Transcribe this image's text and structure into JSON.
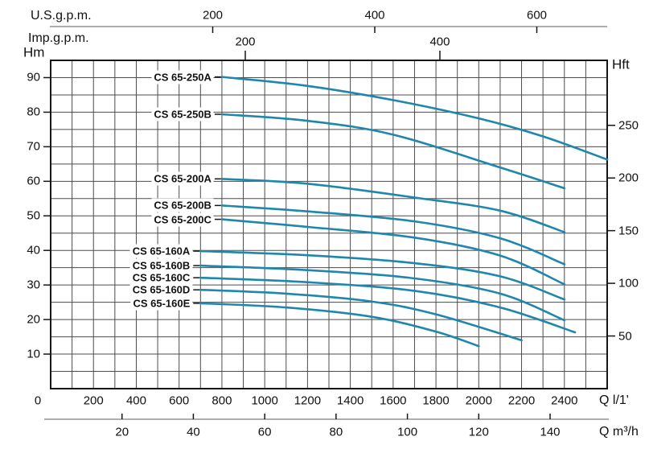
{
  "figure": {
    "background": "#ffffff",
    "curve_color": "#1f87ab",
    "grid_color": "#4c4c4c",
    "border_color": "#161616",
    "axis_line_color": "#7d7d7d",
    "text_color": "#111111"
  },
  "labels": {
    "us_gpm": "U.S.g.p.m.",
    "imp_gpm": "Imp.g.p.m.",
    "hm": "Hm",
    "hft": "Hft",
    "q_l_min": "Q l/1'",
    "q_m3h": "Q m³/h"
  },
  "chart_data": {
    "type": "line",
    "title": "",
    "x_axis_primary": {
      "label": "Q l/1'",
      "unit": "l/min",
      "range": [
        0,
        2600
      ],
      "grid_step": 100,
      "ticks": [
        0,
        200,
        400,
        600,
        800,
        1000,
        1200,
        1400,
        1600,
        1800,
        2000,
        2200,
        2400
      ]
    },
    "x_axis_m3h": {
      "label": "Q m³/h",
      "ticks": [
        20,
        40,
        60,
        80,
        100,
        120,
        140
      ],
      "l_min_per_unit": 16.6667
    },
    "x_axis_us_gpm": {
      "label": "U.S.g.p.m.",
      "ticks": [
        200,
        400,
        600
      ],
      "l_min_per_unit": 3.78541
    },
    "x_axis_imp_gpm": {
      "label": "Imp.g.p.m.",
      "ticks": [
        200,
        400
      ],
      "l_min_per_unit": 4.54609
    },
    "y_axis_left": {
      "label": "Hm",
      "unit": "m",
      "range": [
        0,
        95
      ],
      "grid_step": 5,
      "ticks": [
        10,
        20,
        30,
        40,
        50,
        60,
        70,
        80,
        90
      ]
    },
    "y_axis_right": {
      "label": "Hft",
      "ticks": [
        50,
        100,
        150,
        200,
        250
      ],
      "m_per_unit": 0.3048
    },
    "grid": true,
    "legend_position": "inline-left-of-curves",
    "series": [
      {
        "name": "CS 65-250A",
        "points": [
          [
            800,
            90.2
          ],
          [
            1200,
            87.6
          ],
          [
            1600,
            83.5
          ],
          [
            2000,
            78.2
          ],
          [
            2300,
            73.0
          ],
          [
            2600,
            66.3
          ]
        ]
      },
      {
        "name": "CS 65-250B",
        "points": [
          [
            800,
            79.4
          ],
          [
            1200,
            77.5
          ],
          [
            1600,
            73.5
          ],
          [
            2100,
            64.0
          ],
          [
            2400,
            58.0
          ]
        ]
      },
      {
        "name": "CS 65-200A",
        "points": [
          [
            800,
            60.7
          ],
          [
            1200,
            59.3
          ],
          [
            1700,
            55.3
          ],
          [
            2100,
            51.5
          ],
          [
            2400,
            45.3
          ]
        ]
      },
      {
        "name": "CS 65-200B",
        "points": [
          [
            800,
            53.0
          ],
          [
            1200,
            51.3
          ],
          [
            1700,
            48.4
          ],
          [
            2100,
            43.5
          ],
          [
            2400,
            36.0
          ]
        ]
      },
      {
        "name": "CS 65-200C",
        "points": [
          [
            800,
            49.0
          ],
          [
            1200,
            46.8
          ],
          [
            1700,
            43.7
          ],
          [
            2100,
            38.5
          ],
          [
            2400,
            30.2
          ]
        ]
      },
      {
        "name": "CS 65-160A",
        "points": [
          [
            700,
            39.8
          ],
          [
            1200,
            38.6
          ],
          [
            1700,
            36.3
          ],
          [
            2100,
            32.5
          ],
          [
            2400,
            25.8
          ]
        ]
      },
      {
        "name": "CS 65-160B",
        "points": [
          [
            700,
            35.6
          ],
          [
            1200,
            34.3
          ],
          [
            1700,
            31.9
          ],
          [
            2100,
            27.5
          ],
          [
            2400,
            19.8
          ]
        ]
      },
      {
        "name": "CS 65-160C",
        "points": [
          [
            700,
            32.1
          ],
          [
            1200,
            30.8
          ],
          [
            1700,
            28.3
          ],
          [
            2100,
            23.5
          ],
          [
            2450,
            16.3
          ]
        ]
      },
      {
        "name": "CS 65-160D",
        "points": [
          [
            700,
            28.6
          ],
          [
            1100,
            27.5
          ],
          [
            1500,
            25.2
          ],
          [
            1800,
            21.5
          ],
          [
            2200,
            14.0
          ]
        ]
      },
      {
        "name": "CS 65-160E",
        "points": [
          [
            700,
            24.7
          ],
          [
            1100,
            23.5
          ],
          [
            1500,
            20.8
          ],
          [
            1800,
            16.5
          ],
          [
            2000,
            12.3
          ]
        ]
      }
    ]
  }
}
